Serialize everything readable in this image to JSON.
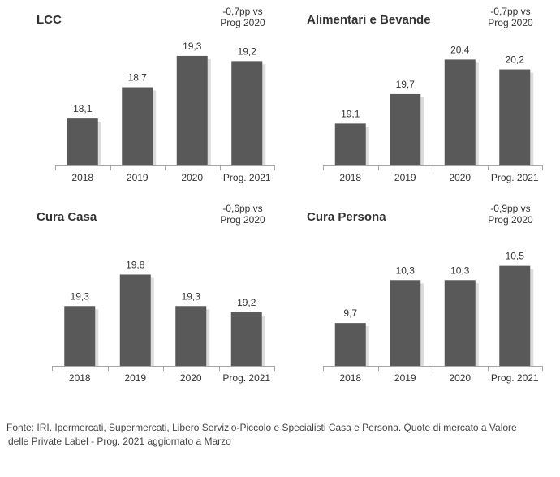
{
  "chart_data": [
    {
      "type": "bar",
      "title": "LCC",
      "annotation": [
        "-0,7pp vs",
        "Prog 2020"
      ],
      "categories": [
        "2018",
        "2019",
        "2020",
        "Prog. 2021"
      ],
      "values": [
        18.1,
        18.7,
        19.3,
        19.2
      ],
      "value_labels": [
        "18,1",
        "18,7",
        "19,3",
        "19,2"
      ],
      "ylim": [
        17.2,
        19.75
      ],
      "grid": false,
      "bar_color": "#595959"
    },
    {
      "type": "bar",
      "title": "Alimentari  e Bevande",
      "annotation": [
        "-0,7pp vs",
        "Prog 2020"
      ],
      "categories": [
        "2018",
        "2019",
        "2020",
        "Prog. 2021"
      ],
      "values": [
        19.1,
        19.7,
        20.4,
        20.2
      ],
      "value_labels": [
        "19,1",
        "19,7",
        "20,4",
        "20,2"
      ],
      "ylim": [
        18.25,
        20.95
      ],
      "grid": false,
      "bar_color": "#595959"
    },
    {
      "type": "bar",
      "title": "Cura Casa",
      "annotation": [
        "-0,6pp vs",
        "Prog 2020"
      ],
      "categories": [
        "2018",
        "2019",
        "2020",
        "Prog. 2021"
      ],
      "values": [
        19.3,
        19.8,
        19.3,
        19.2
      ],
      "value_labels": [
        "19,3",
        "19,8",
        "19,3",
        "19,2"
      ],
      "ylim": [
        18.35,
        20.45
      ],
      "grid": false,
      "bar_color": "#595959"
    },
    {
      "type": "bar",
      "title": "Cura Persona",
      "annotation": [
        "-0,9pp vs",
        "Prog 2020"
      ],
      "categories": [
        "2018",
        "2019",
        "2020",
        "Prog. 2021"
      ],
      "values": [
        9.7,
        10.3,
        10.3,
        10.5
      ],
      "value_labels": [
        "9,7",
        "10,3",
        "10,3",
        "10,5"
      ],
      "ylim": [
        9.1,
        10.95
      ],
      "grid": false,
      "bar_color": "#595959"
    }
  ],
  "footer": {
    "line1": "Fonte: IRI. Ipermercati, Supermercati, Libero Servizio-Piccolo e Specialisti Casa e Persona. Quote di mercato a Valore",
    "line2": "delle Private Label - Prog. 2021 aggiornato a Marzo"
  }
}
